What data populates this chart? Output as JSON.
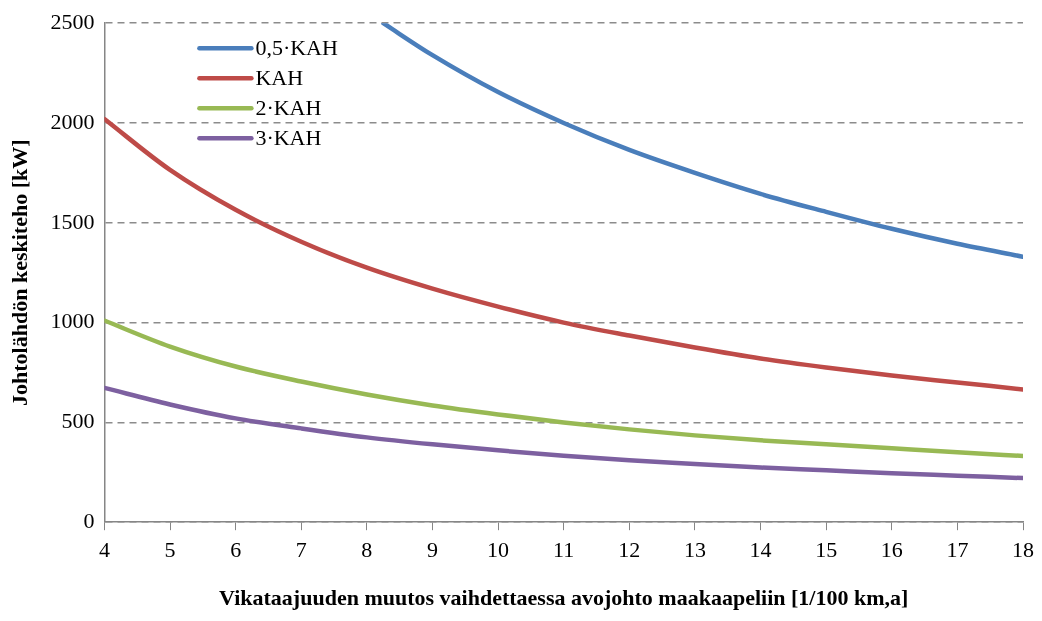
{
  "chart_data": {
    "type": "line",
    "xlabel": "Vikataajuuden muutos vaihdettaessa avojohto maakaapeliin [1/100 km,a]",
    "ylabel": "Johtolähdön keskiteho [kW]",
    "x": [
      4,
      5,
      6,
      7,
      8,
      9,
      10,
      11,
      12,
      13,
      14,
      15,
      16,
      17,
      18
    ],
    "series": [
      {
        "name": "0,5·KAH",
        "color": "#4a7ebb",
        "x": [
          8.25,
          9,
          10,
          11,
          12,
          13,
          14,
          15,
          16,
          17,
          18
        ],
        "values": [
          2500,
          2340,
          2155,
          2000,
          1865,
          1750,
          1645,
          1555,
          1470,
          1395,
          1330
        ]
      },
      {
        "name": "KAH",
        "color": "#be4b48",
        "values": [
          2020,
          1765,
          1565,
          1405,
          1275,
          1170,
          1080,
          1000,
          935,
          875,
          820,
          775,
          735,
          700,
          665
        ]
      },
      {
        "name": "2·KAH",
        "color": "#98b954",
        "values": [
          1010,
          880,
          780,
          705,
          640,
          585,
          540,
          500,
          465,
          435,
          410,
          390,
          370,
          350,
          332
        ]
      },
      {
        "name": "3·KAH",
        "color": "#7d60a0",
        "values": [
          673,
          590,
          520,
          470,
          425,
          390,
          360,
          333,
          310,
          292,
          274,
          260,
          245,
          233,
          221
        ]
      }
    ],
    "xlim": [
      4,
      18
    ],
    "xticks": [
      4,
      5,
      6,
      7,
      8,
      9,
      10,
      11,
      12,
      13,
      14,
      15,
      16,
      17,
      18
    ],
    "ylim": [
      0,
      2500
    ],
    "yticks": [
      0,
      500,
      1000,
      1500,
      2000,
      2500
    ],
    "grid": "y",
    "legend": "top left",
    "marker": "none",
    "line_style": "solid"
  }
}
